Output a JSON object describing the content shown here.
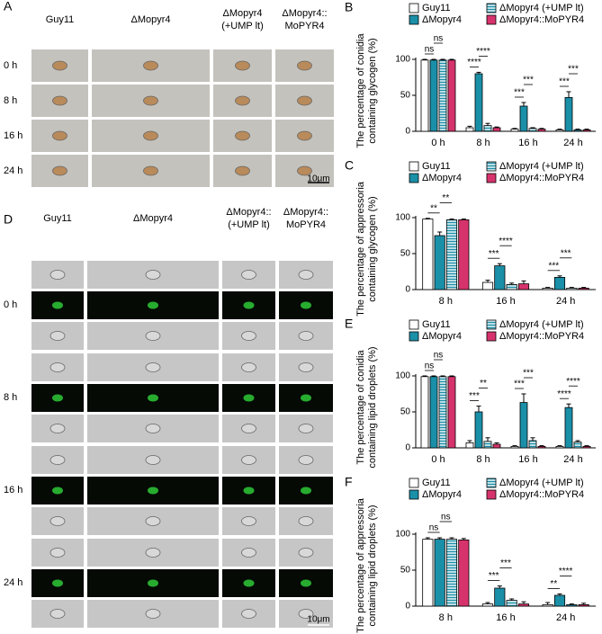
{
  "figure": {
    "A": {
      "label": "A",
      "columns": [
        [
          "Guy11"
        ],
        [
          "ΔMopyr4"
        ],
        [
          "ΔMopyr4",
          "(+UMP lt)"
        ],
        [
          "ΔMopyr4::",
          "MoPYR4"
        ]
      ],
      "rows": [
        "0 h",
        "8 h",
        "16 h",
        "24 h"
      ],
      "scale_bar": "10μm"
    },
    "D": {
      "label": "D",
      "columns": [
        [
          "Guy11"
        ],
        [
          "ΔMopyr4"
        ],
        [
          "ΔMopyr4::",
          "(+UMP lt)"
        ],
        [
          "ΔMopyr4::",
          "MoPYR4"
        ]
      ],
      "rows": [
        "0 h",
        "8 h",
        "16 h",
        "24 h"
      ],
      "scale_bar": "10μm"
    }
  },
  "chart_data": [
    {
      "type": "bar",
      "panel": "B",
      "ylabel": [
        "The percentage of conidia",
        "containing glycogen (%)"
      ],
      "categories": [
        "0 h",
        "8 h",
        "16 h",
        "24 h"
      ],
      "ylim": [
        0,
        100
      ],
      "yticks": [
        0,
        50,
        100
      ],
      "grid": false,
      "series": [
        {
          "name": "Guy11",
          "color": "#ffffff",
          "values": [
            99,
            5,
            3,
            2
          ],
          "errors": [
            1,
            2,
            1,
            1
          ]
        },
        {
          "name": "ΔMopyr4",
          "color": "#1a8fa8",
          "values": [
            99,
            80,
            35,
            47
          ],
          "errors": [
            1,
            2,
            5,
            8
          ]
        },
        {
          "name": "ΔMopyr4 (+UMP lt)",
          "color": "#1a8fa8",
          "pattern": "stripes",
          "values": [
            99,
            8,
            4,
            2
          ],
          "errors": [
            1,
            3,
            1,
            1
          ]
        },
        {
          "name": "ΔMopyr4::MoPYR4",
          "color": "#d6336c",
          "values": [
            99,
            5,
            3,
            2
          ],
          "errors": [
            1,
            1,
            1,
            1
          ]
        }
      ],
      "significance": [
        {
          "text": "ns",
          "at": "0 h",
          "between": [
            "Guy11",
            "ΔMopyr4"
          ]
        },
        {
          "text": "ns",
          "at": "0 h",
          "between": [
            "ΔMopyr4",
            "ΔMopyr4 (+UMP lt)"
          ]
        },
        {
          "text": "****",
          "at": "8 h",
          "between": [
            "Guy11",
            "ΔMopyr4"
          ]
        },
        {
          "text": "****",
          "at": "8 h",
          "between": [
            "ΔMopyr4",
            "ΔMopyr4 (+UMP lt)"
          ]
        },
        {
          "text": "***",
          "at": "16 h",
          "between": [
            "Guy11",
            "ΔMopyr4"
          ]
        },
        {
          "text": "***",
          "at": "16 h",
          "between": [
            "ΔMopyr4",
            "ΔMopyr4 (+UMP lt)"
          ]
        },
        {
          "text": "***",
          "at": "24 h",
          "between": [
            "Guy11",
            "ΔMopyr4"
          ]
        },
        {
          "text": "***",
          "at": "24 h",
          "between": [
            "ΔMopyr4",
            "ΔMopyr4 (+UMP lt)"
          ]
        }
      ]
    },
    {
      "type": "bar",
      "panel": "C",
      "ylabel": [
        "The percentage of appressoria",
        "containing glycogen (%)"
      ],
      "categories": [
        "8 h",
        "16 h",
        "24 h"
      ],
      "ylim": [
        0,
        100
      ],
      "yticks": [
        0,
        50,
        100
      ],
      "grid": false,
      "series": [
        {
          "name": "Guy11",
          "color": "#ffffff",
          "values": [
            98,
            10,
            2
          ],
          "errors": [
            1,
            3,
            1
          ]
        },
        {
          "name": "ΔMopyr4",
          "color": "#1a8fa8",
          "values": [
            75,
            33,
            17
          ],
          "errors": [
            5,
            3,
            2
          ]
        },
        {
          "name": "ΔMopyr4 (+UMP lt)",
          "color": "#1a8fa8",
          "pattern": "stripes",
          "values": [
            97,
            7,
            2
          ],
          "errors": [
            1,
            2,
            1
          ]
        },
        {
          "name": "ΔMopyr4::MoPYR4",
          "color": "#d6336c",
          "values": [
            97,
            8,
            2
          ],
          "errors": [
            1,
            4,
            1
          ]
        }
      ],
      "significance": [
        {
          "text": "**",
          "at": "8 h",
          "between": [
            "Guy11",
            "ΔMopyr4"
          ]
        },
        {
          "text": "**",
          "at": "8 h",
          "between": [
            "ΔMopyr4",
            "ΔMopyr4 (+UMP lt)"
          ]
        },
        {
          "text": "***",
          "at": "16 h",
          "between": [
            "Guy11",
            "ΔMopyr4"
          ]
        },
        {
          "text": "****",
          "at": "16 h",
          "between": [
            "ΔMopyr4",
            "ΔMopyr4 (+UMP lt)"
          ]
        },
        {
          "text": "***",
          "at": "24 h",
          "between": [
            "Guy11",
            "ΔMopyr4"
          ]
        },
        {
          "text": "***",
          "at": "24 h",
          "between": [
            "ΔMopyr4",
            "ΔMopyr4 (+UMP lt)"
          ]
        }
      ]
    },
    {
      "type": "bar",
      "panel": "E",
      "ylabel": [
        "The percentage of conidia",
        "containing lipid droplets (%)"
      ],
      "categories": [
        "0 h",
        "8 h",
        "16 h",
        "24 h"
      ],
      "ylim": [
        0,
        100
      ],
      "yticks": [
        0,
        50,
        100
      ],
      "grid": false,
      "series": [
        {
          "name": "Guy11",
          "color": "#ffffff",
          "values": [
            99,
            7,
            2,
            2
          ],
          "errors": [
            1,
            3,
            1,
            1
          ]
        },
        {
          "name": "ΔMopyr4",
          "color": "#1a8fa8",
          "values": [
            99,
            50,
            63,
            56
          ],
          "errors": [
            1,
            8,
            12,
            5
          ]
        },
        {
          "name": "ΔMopyr4 (+UMP lt)",
          "color": "#1a8fa8",
          "pattern": "stripes",
          "values": [
            99,
            9,
            10,
            8
          ],
          "errors": [
            1,
            5,
            4,
            2
          ]
        },
        {
          "name": "ΔMopyr4::MoPYR4",
          "color": "#d6336c",
          "values": [
            99,
            5,
            2,
            2
          ],
          "errors": [
            1,
            2,
            1,
            1
          ]
        }
      ],
      "significance": [
        {
          "text": "ns",
          "at": "0 h",
          "between": [
            "Guy11",
            "ΔMopyr4"
          ]
        },
        {
          "text": "ns",
          "at": "0 h",
          "between": [
            "ΔMopyr4",
            "ΔMopyr4 (+UMP lt)"
          ]
        },
        {
          "text": "***",
          "at": "8 h",
          "between": [
            "Guy11",
            "ΔMopyr4"
          ]
        },
        {
          "text": "**",
          "at": "8 h",
          "between": [
            "ΔMopyr4",
            "ΔMopyr4 (+UMP lt)"
          ]
        },
        {
          "text": "***",
          "at": "16 h",
          "between": [
            "Guy11",
            "ΔMopyr4"
          ]
        },
        {
          "text": "***",
          "at": "16 h",
          "between": [
            "ΔMopyr4",
            "ΔMopyr4 (+UMP lt)"
          ]
        },
        {
          "text": "****",
          "at": "24 h",
          "between": [
            "Guy11",
            "ΔMopyr4"
          ]
        },
        {
          "text": "****",
          "at": "24 h",
          "between": [
            "ΔMopyr4",
            "ΔMopyr4 (+UMP lt)"
          ]
        }
      ]
    },
    {
      "type": "bar",
      "panel": "F",
      "ylabel": [
        "The percentage of appressoria",
        "containing lipid droplets (%)"
      ],
      "categories": [
        "8 h",
        "16 h",
        "24 h"
      ],
      "ylim": [
        0,
        100
      ],
      "yticks": [
        0,
        50,
        100
      ],
      "grid": false,
      "series": [
        {
          "name": "Guy11",
          "color": "#ffffff",
          "values": [
            93,
            3,
            2
          ],
          "errors": [
            2,
            2,
            3
          ]
        },
        {
          "name": "ΔMopyr4",
          "color": "#1a8fa8",
          "values": [
            93,
            25,
            15
          ],
          "errors": [
            2,
            3,
            2
          ]
        },
        {
          "name": "ΔMopyr4 (+UMP lt)",
          "color": "#1a8fa8",
          "pattern": "stripes",
          "values": [
            93,
            8,
            2
          ],
          "errors": [
            2,
            2,
            1
          ]
        },
        {
          "name": "ΔMopyr4::MoPYR4",
          "color": "#d6336c",
          "values": [
            92,
            3,
            2
          ],
          "errors": [
            2,
            3,
            2
          ]
        }
      ],
      "significance": [
        {
          "text": "ns",
          "at": "8 h",
          "between": [
            "Guy11",
            "ΔMopyr4"
          ]
        },
        {
          "text": "ns",
          "at": "8 h",
          "between": [
            "ΔMopyr4",
            "ΔMopyr4 (+UMP lt)"
          ]
        },
        {
          "text": "***",
          "at": "16 h",
          "between": [
            "Guy11",
            "ΔMopyr4"
          ]
        },
        {
          "text": "***",
          "at": "16 h",
          "between": [
            "ΔMopyr4",
            "ΔMopyr4 (+UMP lt)"
          ]
        },
        {
          "text": "**",
          "at": "24 h",
          "between": [
            "Guy11",
            "ΔMopyr4"
          ]
        },
        {
          "text": "****",
          "at": "24 h",
          "between": [
            "ΔMopyr4",
            "ΔMopyr4 (+UMP lt)"
          ]
        }
      ]
    }
  ]
}
